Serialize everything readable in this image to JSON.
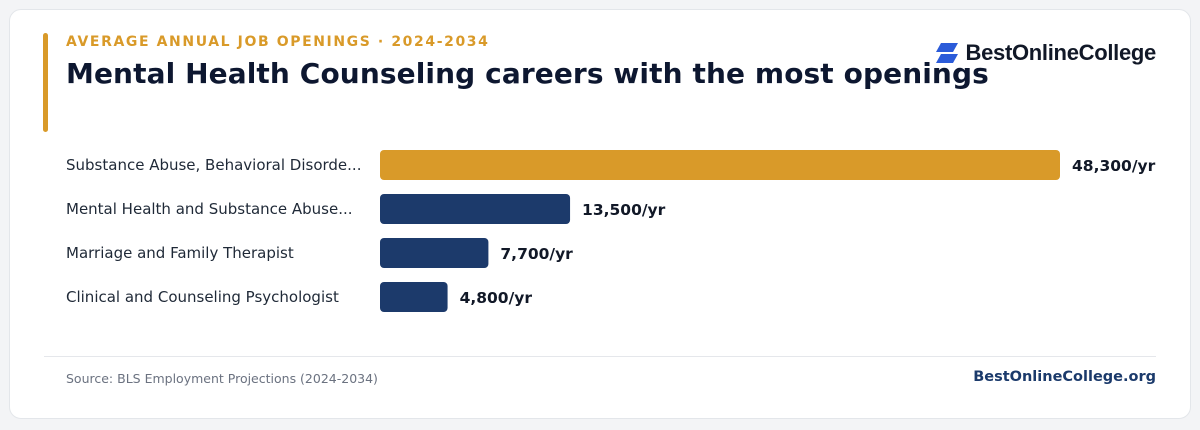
{
  "header": {
    "eyebrow": "AVERAGE ANNUAL JOB OPENINGS · 2024-2034",
    "title": "Mental Health Counseling careers with the most openings"
  },
  "logo": {
    "text": "BestOnlineCollege",
    "icon": "bestonlinecollege-logo-icon",
    "color": "#2b5bd9"
  },
  "colors": {
    "accent": "#d99a29",
    "bar_highlight": "#d99a29",
    "bar_default": "#1c3a6b"
  },
  "chart_data": {
    "type": "bar",
    "orientation": "horizontal",
    "categories": [
      "Substance Abuse, Behavioral Disorde...",
      "Mental Health and Substance Abuse...",
      "Marriage and Family Therapist",
      "Clinical and Counseling Psychologist"
    ],
    "values": [
      48300,
      13500,
      7700,
      4800
    ],
    "value_labels": [
      "48,300/yr",
      "13,500/yr",
      "7,700/yr",
      "4,800/yr"
    ],
    "unit": "/yr",
    "highlight_index": 0,
    "xlim": [
      0,
      48300
    ],
    "grid": false
  },
  "footer": {
    "source": "Source: BLS Employment Projections (2024-2034)",
    "site": "BestOnlineCollege.org"
  }
}
